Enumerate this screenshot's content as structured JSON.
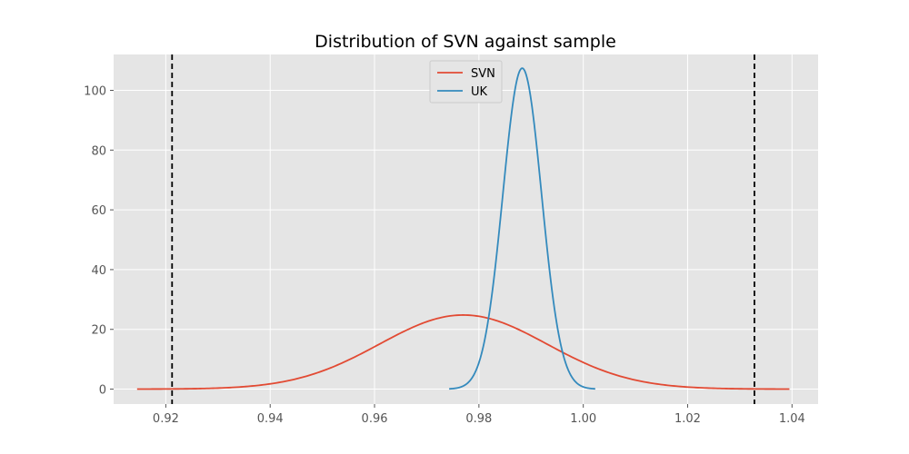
{
  "chart_data": {
    "type": "line",
    "title": "Distribution of SVN against sample",
    "xlabel": "",
    "ylabel": "",
    "xlim": [
      0.91,
      1.045
    ],
    "ylim": [
      -5,
      112
    ],
    "xticks": [
      0.92,
      0.94,
      0.96,
      0.98,
      1.0,
      1.02,
      1.04
    ],
    "xtick_labels": [
      "0.92",
      "0.94",
      "0.96",
      "0.98",
      "1.00",
      "1.02",
      "1.04"
    ],
    "yticks": [
      0,
      20,
      40,
      60,
      80,
      100
    ],
    "ytick_labels": [
      "0",
      "20",
      "40",
      "60",
      "80",
      "100"
    ],
    "grid": true,
    "legend_position": "top-center",
    "series": [
      {
        "name": "SVN",
        "color": "#E24A33",
        "distribution": "normal",
        "mean": 0.977,
        "peak": 24.8,
        "x_range": [
          0.9145,
          1.0395
        ]
      },
      {
        "name": "UK",
        "color": "#348ABD",
        "distribution": "normal",
        "mean": 0.9883,
        "peak": 107.4,
        "x_range": [
          0.9743,
          1.0023
        ]
      }
    ],
    "vlines": [
      {
        "x": 0.9212,
        "style": "dashed",
        "color": "#000000"
      },
      {
        "x": 1.0328,
        "style": "dashed",
        "color": "#000000"
      }
    ]
  }
}
